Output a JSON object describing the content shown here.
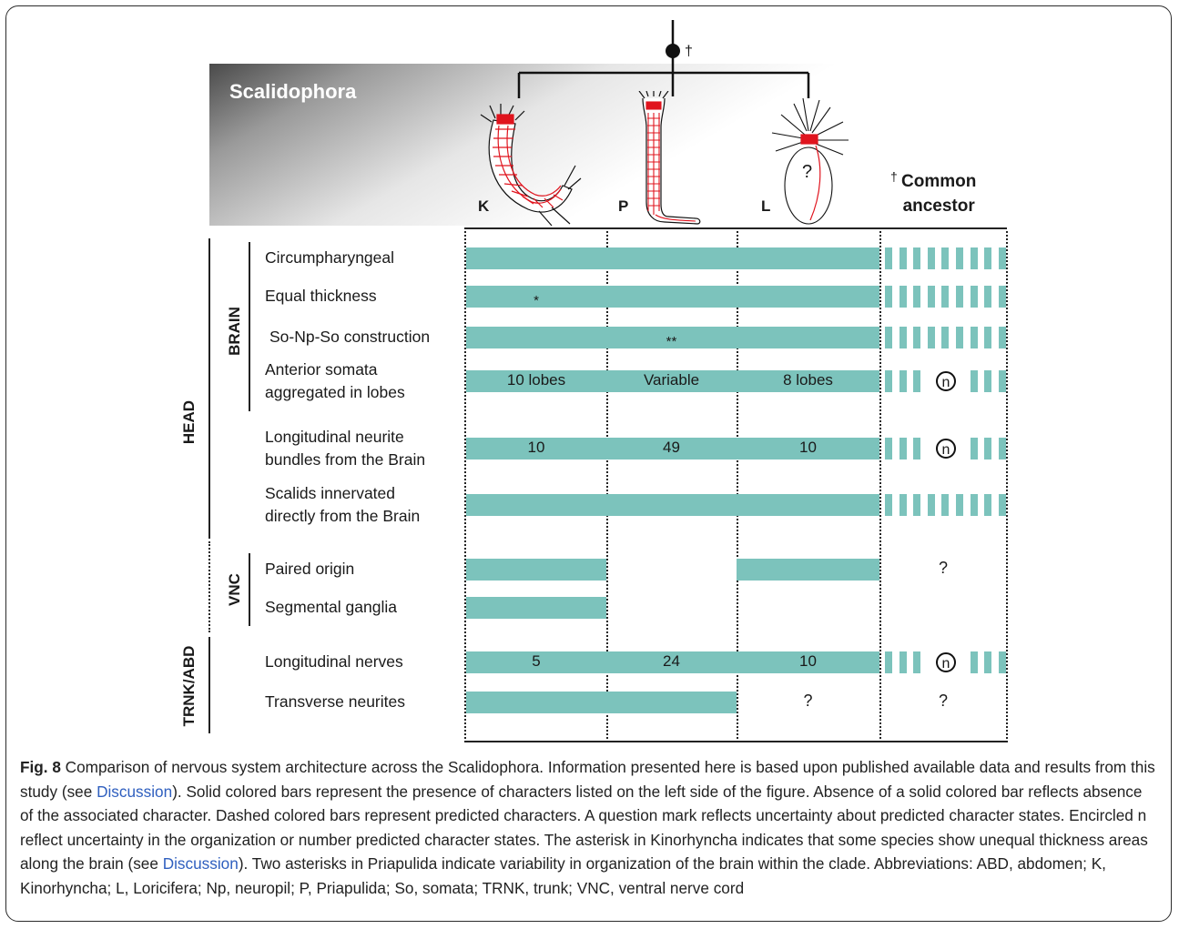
{
  "figure": {
    "banner_title": "Scalidophora",
    "ancestor_dagger": "†",
    "columns": [
      {
        "key": "K",
        "label": "K"
      },
      {
        "key": "P",
        "label": "P"
      },
      {
        "key": "L",
        "label": "L"
      },
      {
        "key": "CA",
        "label": "Common\nancestor",
        "dagger": "†"
      }
    ],
    "loricifera_uncertain": "?",
    "groups": {
      "head": "HEAD",
      "brain": "BRAIN",
      "vnc": "VNC",
      "trunk": "TRNK/ABD"
    },
    "rows": [
      {
        "label": "Circumpharyngeal",
        "K": "",
        "P": "",
        "L": "",
        "CA": "dashed"
      },
      {
        "label": "Equal thickness",
        "K": "",
        "P": "",
        "L": "",
        "K_note": "*",
        "CA": "dashed"
      },
      {
        "label": "So-Np-So construction",
        "K": "",
        "P": "",
        "L": "",
        "P_note": "**",
        "CA": "dashed"
      },
      {
        "label": "Anterior somata\naggregated in lobes",
        "K": "10 lobes",
        "P": "Variable",
        "L": "8 lobes",
        "CA": "n"
      },
      {
        "label": "Longitudinal neurite\nbundles from the Brain",
        "K": "10",
        "P": "49",
        "L": "10",
        "CA": "n"
      },
      {
        "label": "Scalids innervated\ndirectly from the Brain",
        "K": "",
        "P": "",
        "L": "",
        "CA": "dashed"
      },
      {
        "label": "Paired origin",
        "K": "",
        "P": null,
        "L": "",
        "CA": "?"
      },
      {
        "label": "Segmental ganglia",
        "K": "",
        "P": null,
        "L": null,
        "CA": null
      },
      {
        "label": "Longitudinal nerves",
        "K": "5",
        "P": "24",
        "L": "10",
        "CA": "n"
      },
      {
        "label": "Transverse neurites",
        "K": "",
        "P": "",
        "L": "?",
        "CA": "?"
      }
    ],
    "n_symbol": "n",
    "colors": {
      "bar": "#7cc3bc",
      "neurons": "#e0141e"
    }
  },
  "caption": {
    "fig_label": "Fig. 8",
    "part1": " Comparison of nervous system architecture across the Scalidophora. Information presented here is based upon published available data and results from this study (see ",
    "link1": "Discussion",
    "part2": "). Solid colored bars represent the presence of characters listed on the left side of the figure. Absence of a solid colored bar reflects absence of the associated character. Dashed colored bars represent predicted characters. A question mark reflects uncertainty about predicted character states. Encircled n reflect uncertainty in the organization or number predicted character states. The asterisk in Kinorhyncha indicates that some species show unequal thickness areas along the brain (see ",
    "link2": "Discussion",
    "part3": "). Two asterisks in Priapulida indicate variability in organization of the brain within the clade. Abbreviations: ABD, abdomen; K, Kinorhyncha; L, Loricifera; Np, neuropil; P, Priapulida; So, somata; TRNK, trunk; VNC, ventral nerve cord"
  }
}
